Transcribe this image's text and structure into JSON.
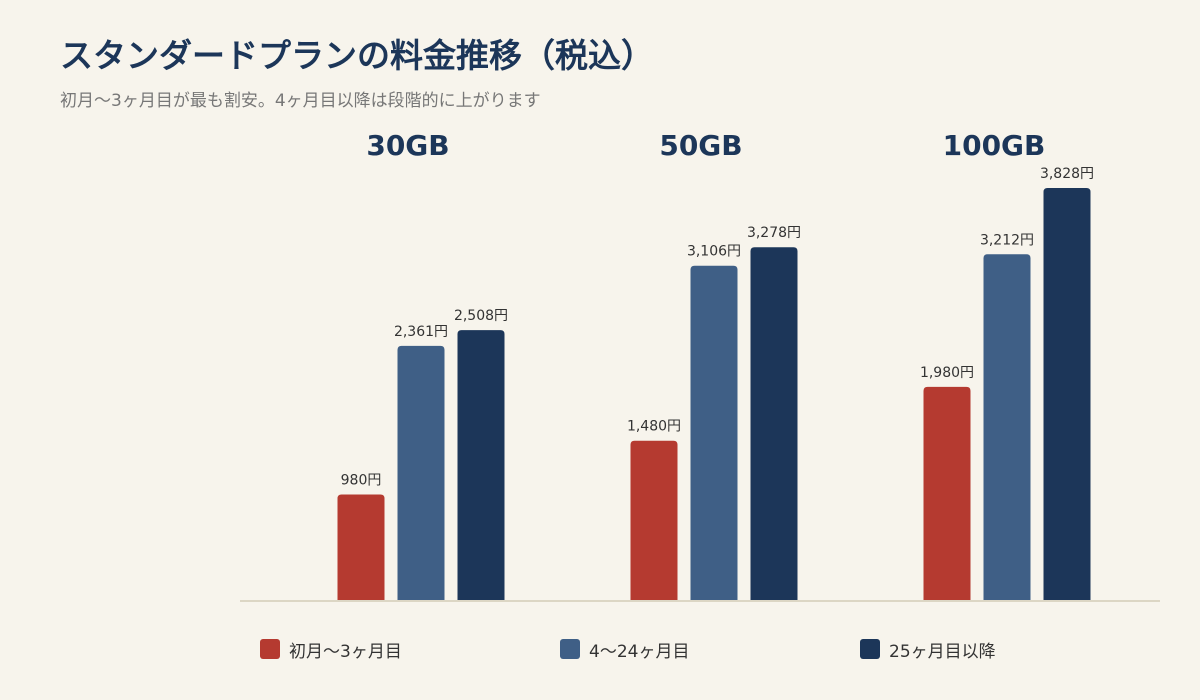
{
  "title": "スタンダードプランの料金推移（税込）",
  "subtitle": "初月〜3ヶ月目が最も割安。4ヶ月目以降は段階的に上がります",
  "colors": {
    "axis": "#dcd6c4",
    "group_label": "#1c3659",
    "value_label": "#333333"
  },
  "chart_data": {
    "type": "bar",
    "categories": [
      "30GB",
      "50GB",
      "100GB"
    ],
    "value_suffix": "円",
    "series": [
      {
        "name": "初月〜3ヶ月目",
        "color": "#b53a30",
        "values": [
          980,
          1480,
          1980
        ]
      },
      {
        "name": "4〜24ヶ月目",
        "color": "#3f5f86",
        "values": [
          2361,
          3106,
          3212
        ]
      },
      {
        "name": "25ヶ月目以降",
        "color": "#1c3659",
        "values": [
          2508,
          3278,
          3828
        ]
      }
    ],
    "ylim": [
      0,
      3828
    ],
    "grid": false,
    "legend_position": "bottom"
  }
}
